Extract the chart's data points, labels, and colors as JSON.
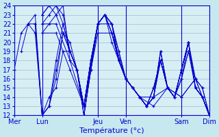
{
  "background_color": "#c8e8f0",
  "plot_bg_color": "#d8eef5",
  "grid_color": "#9bbece",
  "line_color": "#0000cc",
  "xlabel": "Température (°c)",
  "xlabel_fontsize": 8,
  "tick_fontsize": 7,
  "ylim": [
    12,
    24
  ],
  "yticks": [
    12,
    13,
    14,
    15,
    16,
    17,
    18,
    19,
    20,
    21,
    22,
    23,
    24
  ],
  "xlim": [
    0,
    168
  ],
  "day_labels": [
    "Mer",
    "Lun",
    "Jeu",
    "Ven",
    "Sam",
    "Dim"
  ],
  "day_x": [
    0,
    24,
    72,
    96,
    144,
    168
  ],
  "series": [
    {
      "x": [
        0,
        6,
        12,
        18,
        24,
        30,
        36,
        42,
        48,
        54,
        60,
        66,
        72,
        78,
        84,
        90,
        96,
        102,
        108,
        114,
        120,
        126,
        132,
        138,
        144,
        150,
        156,
        162,
        168
      ],
      "y": [
        17,
        21,
        22,
        21,
        12,
        13,
        18,
        22,
        19,
        17,
        13,
        18,
        22,
        23,
        21,
        18,
        16,
        15,
        14,
        13,
        14,
        19,
        15,
        14,
        16,
        19,
        15,
        14,
        12
      ]
    },
    {
      "x": [
        6,
        12,
        18,
        24,
        30,
        36,
        42,
        48,
        54,
        60,
        66,
        72,
        78,
        84,
        90,
        96,
        102,
        108,
        114,
        120,
        126,
        132,
        138,
        144,
        150,
        156,
        162,
        168
      ],
      "y": [
        19,
        22,
        22,
        12,
        13,
        17,
        21,
        19,
        17,
        12,
        17,
        22,
        23,
        22,
        19,
        16,
        15,
        14,
        13,
        15,
        18,
        15,
        14,
        17,
        20,
        15,
        14,
        12
      ]
    },
    {
      "x": [
        12,
        18,
        24,
        30,
        36,
        42,
        48,
        54,
        60,
        66,
        72,
        78,
        84,
        90,
        96,
        102,
        108,
        114,
        120,
        126,
        132,
        138,
        144,
        150,
        156,
        162,
        168
      ],
      "y": [
        22,
        23,
        12,
        13,
        16,
        21,
        20,
        17,
        12,
        17,
        22,
        23,
        22,
        18,
        16,
        15,
        14,
        13,
        15,
        18,
        15,
        14,
        17,
        20,
        15,
        14,
        12
      ]
    },
    {
      "x": [
        18,
        24,
        30,
        36,
        42,
        48,
        54,
        60,
        66,
        72,
        78,
        84,
        90,
        96,
        102,
        108,
        114,
        120,
        126,
        132,
        138,
        144,
        150,
        156,
        162,
        168
      ],
      "y": [
        22,
        12,
        14,
        15,
        19,
        19,
        17,
        12,
        17,
        22,
        23,
        22,
        18,
        16,
        15,
        14,
        13,
        15,
        18,
        15,
        14,
        17,
        20,
        15,
        14,
        12
      ]
    },
    {
      "x": [
        24,
        30,
        36,
        42,
        48,
        54,
        60,
        66,
        72,
        78,
        84,
        90,
        96,
        102,
        108,
        114,
        120,
        126,
        132,
        138,
        144,
        150,
        156,
        162,
        168
      ],
      "y": [
        21,
        22,
        23,
        24,
        18,
        17,
        13,
        18,
        22,
        23,
        22,
        18,
        16,
        15,
        14,
        13,
        14,
        19,
        15,
        14,
        17,
        20,
        15,
        14,
        12
      ]
    },
    {
      "x": [
        24,
        30,
        36,
        42,
        48,
        54,
        60,
        66,
        72,
        78,
        84,
        90,
        96,
        102,
        108,
        114,
        120,
        126,
        132,
        138,
        144,
        150,
        156,
        162,
        168
      ],
      "y": [
        22,
        23,
        24,
        23,
        19,
        17,
        13,
        18,
        22,
        23,
        21,
        18,
        16,
        15,
        14,
        13,
        14,
        19,
        15,
        14,
        17,
        20,
        15,
        14,
        12
      ]
    },
    {
      "x": [
        24,
        30,
        36,
        42,
        48,
        54,
        60,
        66,
        72,
        78,
        84,
        90,
        96,
        102,
        108,
        114,
        120,
        126,
        132,
        138,
        144,
        150,
        156,
        162,
        168
      ],
      "y": [
        23,
        24,
        24,
        22,
        19,
        17,
        13,
        18,
        22,
        23,
        21,
        18,
        16,
        15,
        14,
        13,
        14,
        18,
        15,
        14,
        16,
        20,
        16,
        15,
        12
      ]
    },
    {
      "x": [
        24,
        30,
        36,
        42,
        48,
        54,
        60,
        66,
        72,
        78,
        84,
        90,
        96,
        102,
        108,
        114,
        120,
        126,
        132,
        138,
        144,
        150,
        156,
        162,
        168
      ],
      "y": [
        23,
        24,
        23,
        21,
        19,
        17,
        13,
        18,
        22,
        23,
        20,
        18,
        16,
        15,
        14,
        13,
        14,
        18,
        15,
        14,
        16,
        19,
        16,
        15,
        12
      ]
    },
    {
      "x": [
        24,
        36,
        48,
        60,
        72,
        84,
        96,
        108,
        120,
        132,
        144,
        156,
        168
      ],
      "y": [
        22,
        22,
        18,
        13,
        22,
        22,
        16,
        14,
        14,
        15,
        14,
        16,
        12
      ]
    },
    {
      "x": [
        24,
        36,
        48,
        60,
        72,
        84,
        96,
        108,
        120,
        132,
        144,
        156,
        168
      ],
      "y": [
        21,
        21,
        17,
        13,
        21,
        21,
        16,
        14,
        13,
        15,
        14,
        16,
        12
      ]
    }
  ]
}
